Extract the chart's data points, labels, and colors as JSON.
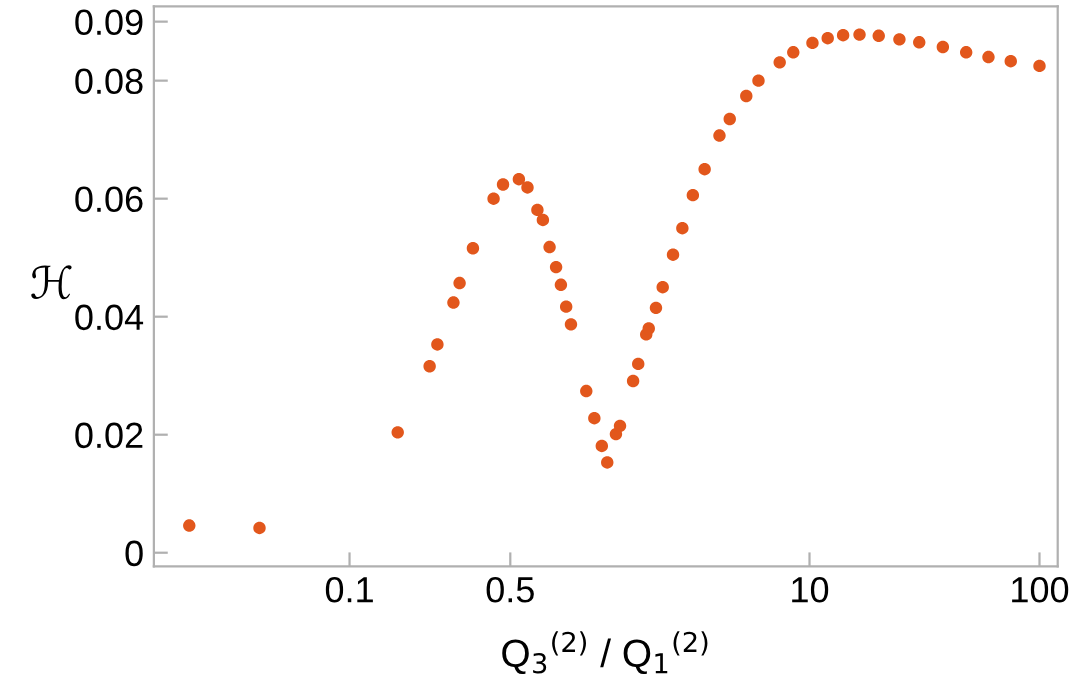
{
  "chart_data": {
    "type": "scatter",
    "xlabel": "Q$_{3}$$^{(2)}$ / Q$_{1}$$^{(2)}$",
    "ylabel": "ℋ",
    "log": "x",
    "marker": "circle",
    "xlim": [
      0.0141,
      120
    ],
    "xticks": [
      0.1,
      0.5,
      10,
      100
    ],
    "ylim": [
      -0.0023,
      0.0926
    ],
    "yticks": [
      0,
      0.02,
      0.04,
      0.06,
      0.08,
      0.09
    ],
    "series": [
      {
        "color": "#e2571c",
        "x": [
          0.0201,
          0.0406,
          0.162,
          0.223,
          0.241,
          0.283,
          0.301,
          0.344,
          0.423,
          0.465,
          0.545,
          0.594,
          0.656,
          0.693,
          0.741,
          0.791,
          0.83,
          0.875,
          0.918,
          1.07,
          1.16,
          1.25,
          1.32,
          1.44,
          1.5,
          1.71,
          1.8,
          1.95,
          2.0,
          2.15,
          2.3,
          2.55,
          2.8,
          3.11,
          3.5,
          4.06,
          4.5,
          5.31,
          6.0,
          7.42,
          8.5,
          10.3,
          12,
          14,
          16.5,
          20,
          24.6,
          30,
          38,
          48,
          60,
          75,
          100
        ],
        "values": [
          0.0046,
          0.0042,
          0.0204,
          0.0316,
          0.0353,
          0.0424,
          0.0457,
          0.0516,
          0.06,
          0.0624,
          0.0633,
          0.0619,
          0.0581,
          0.0564,
          0.0518,
          0.0484,
          0.0454,
          0.0417,
          0.0387,
          0.0274,
          0.0228,
          0.0181,
          0.0153,
          0.0201,
          0.0215,
          0.0291,
          0.032,
          0.037,
          0.038,
          0.0415,
          0.045,
          0.0505,
          0.055,
          0.0606,
          0.065,
          0.0707,
          0.0735,
          0.0774,
          0.08,
          0.0831,
          0.0848,
          0.0864,
          0.0872,
          0.0877,
          0.0878,
          0.0876,
          0.087,
          0.0865,
          0.0857,
          0.0848,
          0.084,
          0.0833,
          0.0825
        ]
      }
    ]
  }
}
